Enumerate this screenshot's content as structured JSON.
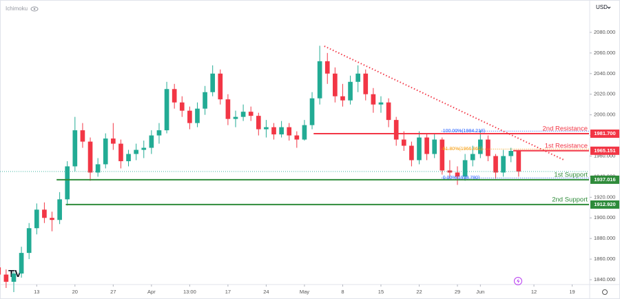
{
  "ui": {
    "indicator": "Ichimoku",
    "currency": "USD"
  },
  "chart_data": {
    "type": "candlestick",
    "up_color": "#22ab94",
    "down_color": "#f23645",
    "open": [
      1852,
      1845,
      1838,
      1846,
      1866,
      1890,
      1908,
      1900,
      1898,
      1918,
      1950,
      1985,
      1974,
      1944,
      1952,
      1977,
      1972,
      1955,
      1962,
      1966,
      1968,
      1980,
      1985,
      2025,
      2012,
      2004,
      1992,
      2006,
      2022,
      2040,
      2015,
      1996,
      1998,
      2003,
      1999,
      1986,
      1988,
      1981,
      1988,
      1980,
      1976,
      1990,
      2016,
      2052,
      2040,
      2018,
      2014,
      2032,
      2040,
      2020,
      2010,
      2012,
      1995,
      1976,
      1970,
      1956,
      1978,
      1962,
      1976,
      1946,
      1944,
      1940,
      1956,
      1962,
      1976,
      1960,
      1944,
      1960,
      1965
    ],
    "high": [
      1858,
      1850,
      1848,
      1872,
      1895,
      1914,
      1915,
      1906,
      1925,
      1955,
      1998,
      1992,
      1978,
      1958,
      1982,
      1992,
      1976,
      1966,
      1972,
      1975,
      1985,
      1992,
      2032,
      2030,
      2018,
      2008,
      2012,
      2028,
      2048,
      2044,
      2020,
      2004,
      2010,
      2008,
      2002,
      1995,
      1992,
      1994,
      1992,
      1984,
      1995,
      2022,
      2067,
      2060,
      2046,
      2030,
      2038,
      2048,
      2044,
      2026,
      2018,
      2016,
      1998,
      1984,
      1974,
      1984,
      1982,
      1982,
      1978,
      1956,
      1950,
      1962,
      1970,
      1985,
      1980,
      1962,
      1966,
      1968,
      1966
    ],
    "low": [
      1838,
      1832,
      1828,
      1842,
      1860,
      1884,
      1895,
      1887,
      1894,
      1912,
      1945,
      1968,
      1936,
      1940,
      1948,
      1966,
      1948,
      1950,
      1956,
      1958,
      1962,
      1972,
      1982,
      2006,
      1998,
      1986,
      1988,
      2000,
      2018,
      2010,
      1990,
      1988,
      1994,
      1994,
      1980,
      1978,
      1976,
      1978,
      1975,
      1968,
      1975,
      1986,
      2010,
      2030,
      2012,
      2008,
      2010,
      2022,
      2014,
      2002,
      2002,
      1988,
      1970,
      1965,
      1950,
      1952,
      1956,
      1958,
      1942,
      1938,
      1932,
      1936,
      1950,
      1958,
      1955,
      1938,
      1940,
      1954,
      1940
    ],
    "close": [
      1845,
      1838,
      1846,
      1866,
      1890,
      1908,
      1900,
      1898,
      1918,
      1950,
      1985,
      1974,
      1944,
      1952,
      1977,
      1972,
      1955,
      1962,
      1966,
      1968,
      1980,
      1985,
      2025,
      2012,
      2004,
      1992,
      2006,
      2022,
      2040,
      2015,
      1996,
      1998,
      2003,
      1999,
      1986,
      1988,
      1981,
      1988,
      1980,
      1976,
      1990,
      2016,
      2052,
      2040,
      2018,
      2014,
      2032,
      2040,
      2020,
      2010,
      2012,
      1995,
      1976,
      1970,
      1956,
      1978,
      1962,
      1976,
      1946,
      1944,
      1940,
      1956,
      1962,
      1976,
      1960,
      1944,
      1960,
      1965,
      1945
    ],
    "xlim": [
      0.2,
      77.2
    ],
    "xticks": [
      {
        "value": 5,
        "label": "13"
      },
      {
        "value": 10,
        "label": "20"
      },
      {
        "value": 15,
        "label": "27"
      },
      {
        "value": 20,
        "label": "Apr"
      },
      {
        "value": 25,
        "label": "13:00"
      },
      {
        "value": 30,
        "label": "17"
      },
      {
        "value": 35,
        "label": "24"
      },
      {
        "value": 40,
        "label": "May"
      },
      {
        "value": 45,
        "label": "8"
      },
      {
        "value": 50,
        "label": "15"
      },
      {
        "value": 55,
        "label": "22"
      },
      {
        "value": 60,
        "label": "29"
      },
      {
        "value": 63,
        "label": "Jun"
      },
      {
        "value": 70,
        "label": "12"
      },
      {
        "value": 75,
        "label": "19"
      }
    ],
    "ylim": [
      1836,
      2111.4
    ],
    "yticks": [
      {
        "value": 1840,
        "label": "1840.000"
      },
      {
        "value": 1860,
        "label": "1860.000"
      },
      {
        "value": 1880,
        "label": "1880.000"
      },
      {
        "value": 1900,
        "label": "1900.000"
      },
      {
        "value": 1920,
        "label": "1920.000"
      },
      {
        "value": 1940,
        "label": "1940.000"
      },
      {
        "value": 1960,
        "label": "1960.000"
      },
      {
        "value": 1980,
        "label": "1980.000"
      },
      {
        "value": 2000,
        "label": "2000.000"
      },
      {
        "value": 2020,
        "label": "2020.000"
      },
      {
        "value": 2040,
        "label": "2040.000"
      },
      {
        "value": 2060,
        "label": "2060.000"
      },
      {
        "value": 2080,
        "label": "2080.000"
      }
    ],
    "levels": [
      {
        "name": "2nd Resistance",
        "value": 1981.7,
        "label": "1981.700",
        "color": "#f23645",
        "start": 41.2
      },
      {
        "name": "1st Resistance",
        "value": 1965.151,
        "label": "1965.151",
        "color": "#f23645",
        "start": 67.3
      },
      {
        "name": "1st Support",
        "value": 1937.016,
        "label": "1937.016",
        "color": "#2e8b3a",
        "start": 7.6
      },
      {
        "name": "2nd Support",
        "value": 1912.92,
        "label": "1912.920",
        "color": "#2e8b3a",
        "start": 8.8
      }
    ],
    "fib": {
      "start": 57.9,
      "levels": [
        {
          "value": 1984.218,
          "label": "100.00%(1984.218)",
          "color": "#2962ff"
        },
        {
          "value": 1966.861,
          "label": "61.80%(1966.861)",
          "color": "#f7a21b"
        },
        {
          "value": 1938.78,
          "label": "0.00%(1938.780)",
          "color": "#2962ff"
        }
      ]
    },
    "trendline": {
      "x": [
        42.6,
        73.9
      ],
      "y": [
        2066.6,
        1956.3
      ],
      "color": "#f23645"
    }
  }
}
